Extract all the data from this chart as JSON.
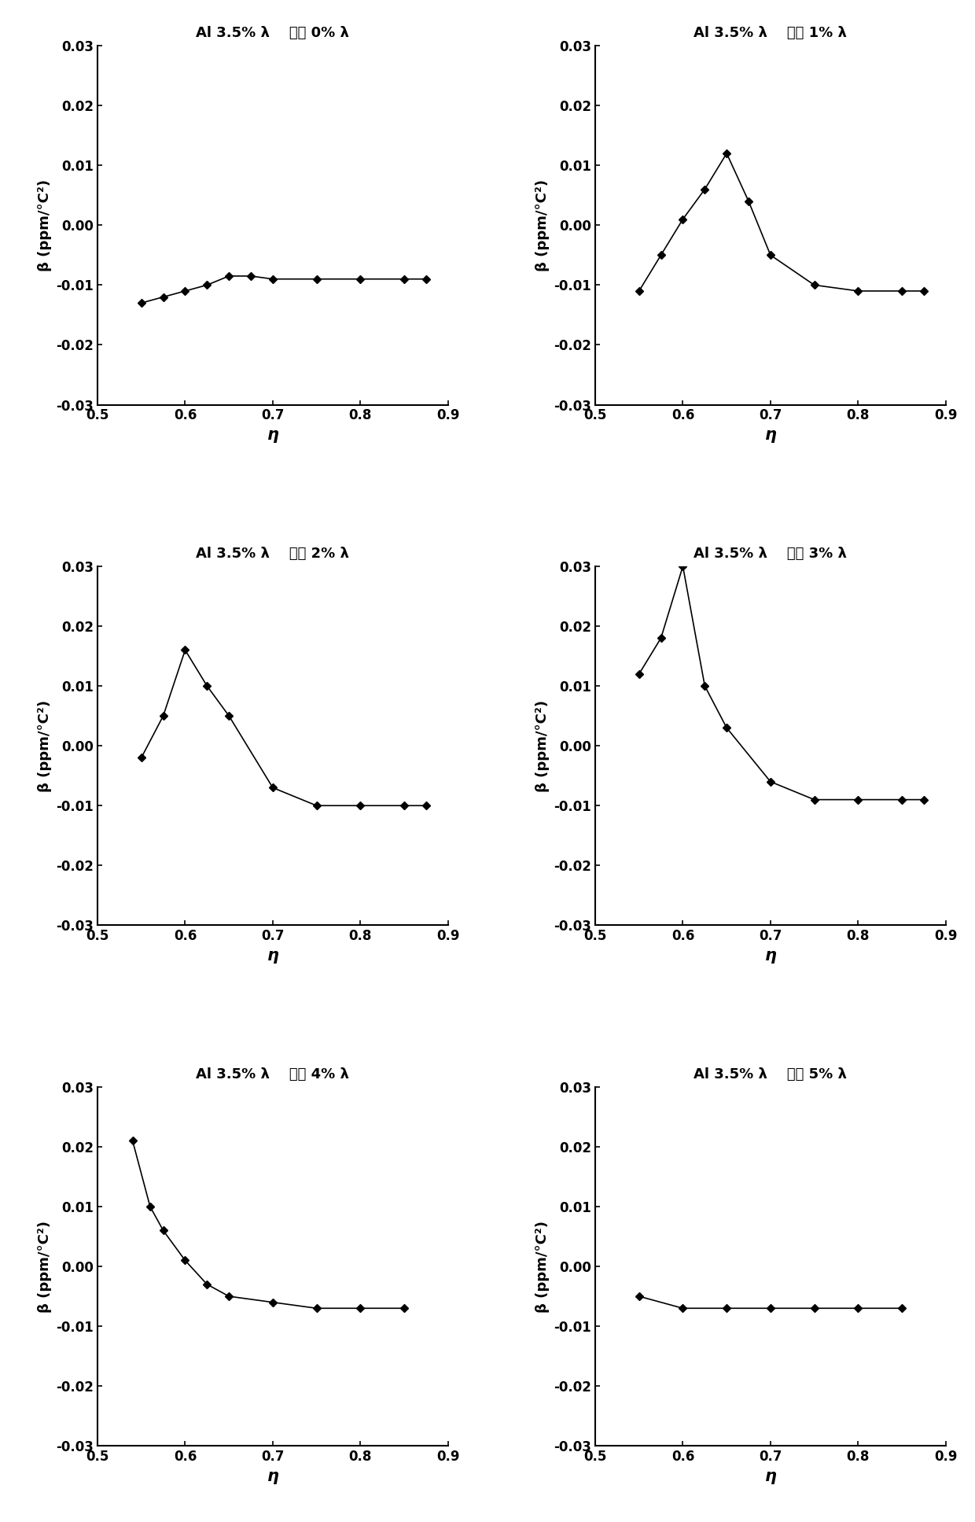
{
  "plots": [
    {
      "title": "Al 3.5% λ    槽深 0% λ",
      "x": [
        0.55,
        0.575,
        0.6,
        0.625,
        0.65,
        0.675,
        0.7,
        0.75,
        0.8,
        0.85,
        0.875
      ],
      "y": [
        -0.013,
        -0.012,
        -0.011,
        -0.01,
        -0.0085,
        -0.0085,
        -0.009,
        -0.009,
        -0.009,
        -0.009,
        -0.009
      ]
    },
    {
      "title": "Al 3.5% λ    槽深 1% λ",
      "x": [
        0.55,
        0.575,
        0.6,
        0.625,
        0.65,
        0.675,
        0.7,
        0.75,
        0.8,
        0.85,
        0.875
      ],
      "y": [
        -0.011,
        -0.005,
        0.001,
        0.006,
        0.012,
        0.004,
        -0.005,
        -0.01,
        -0.011,
        -0.011,
        -0.011
      ]
    },
    {
      "title": "Al 3.5% λ    槽深 2% λ",
      "x": [
        0.55,
        0.575,
        0.6,
        0.625,
        0.65,
        0.7,
        0.75,
        0.8,
        0.85,
        0.875
      ],
      "y": [
        -0.002,
        0.005,
        0.016,
        0.01,
        0.005,
        -0.007,
        -0.01,
        -0.01,
        -0.01,
        -0.01
      ]
    },
    {
      "title": "Al 3.5% λ    槽深 3% λ",
      "x": [
        0.55,
        0.575,
        0.6,
        0.625,
        0.65,
        0.7,
        0.75,
        0.8,
        0.85,
        0.875
      ],
      "y": [
        0.012,
        0.018,
        0.03,
        0.01,
        0.003,
        -0.006,
        -0.009,
        -0.009,
        -0.009,
        -0.009
      ]
    },
    {
      "title": "Al 3.5% λ    槽深 4% λ",
      "x": [
        0.54,
        0.56,
        0.575,
        0.6,
        0.625,
        0.65,
        0.7,
        0.75,
        0.8,
        0.85
      ],
      "y": [
        0.021,
        0.01,
        0.006,
        0.001,
        -0.003,
        -0.005,
        -0.006,
        -0.007,
        -0.007,
        -0.007
      ]
    },
    {
      "title": "Al 3.5% λ    槽深 5% λ",
      "x": [
        0.55,
        0.6,
        0.65,
        0.7,
        0.75,
        0.8,
        0.85
      ],
      "y": [
        -0.005,
        -0.007,
        -0.007,
        -0.007,
        -0.007,
        -0.007,
        -0.007
      ]
    }
  ],
  "ylabel": "β (ppm/°C²)",
  "xlabel": "η",
  "xlim": [
    0.5,
    0.9
  ],
  "ylim": [
    -0.03,
    0.03
  ],
  "xticks": [
    0.5,
    0.6,
    0.7,
    0.8,
    0.9
  ],
  "yticks": [
    -0.03,
    -0.02,
    -0.01,
    0.0,
    0.01,
    0.02,
    0.03
  ],
  "ytick_labels": [
    "-0.03",
    "-0.02",
    "-0.01",
    "0.00",
    "0.01",
    "0.02",
    "0.03"
  ],
  "bg_color": "#ffffff",
  "line_color": "#000000",
  "marker": "D",
  "markersize": 5,
  "linewidth": 1.2,
  "title_fontsize": 13,
  "tick_fontsize": 12,
  "label_fontsize": 13,
  "xlabel_fontsize": 15
}
